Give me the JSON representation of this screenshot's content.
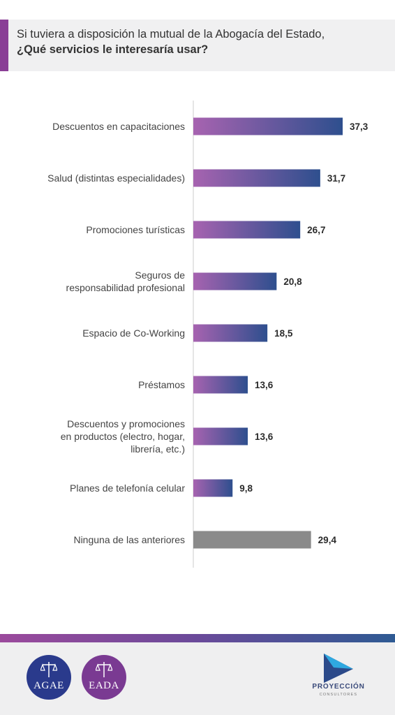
{
  "header": {
    "line1": "Si tuviera a disposición la mutual de la Abogacía del Estado,",
    "line2": "¿Qué servicios le interesaría usar?"
  },
  "chart_data": {
    "type": "bar",
    "orientation": "horizontal",
    "categories": [
      [
        "Descuentos en capacitaciones"
      ],
      [
        "Salud (distintas especialidades)"
      ],
      [
        "Promociones turísticas"
      ],
      [
        "Seguros de",
        "responsabilidad profesional"
      ],
      [
        "Espacio de Co-Working"
      ],
      [
        "Préstamos"
      ],
      [
        "Descuentos y promociones",
        "en productos (electro, hogar,",
        "librería, etc.)"
      ],
      [
        "Planes de telefonía celular"
      ],
      [
        "Ninguna de las anteriores"
      ]
    ],
    "values": [
      37.3,
      31.7,
      26.7,
      20.8,
      18.5,
      13.6,
      13.6,
      9.8,
      29.4
    ],
    "value_labels": [
      "37,3",
      "31,7",
      "26,7",
      "20,8",
      "18,5",
      "13,6",
      "13,6",
      "9,8",
      "29,4"
    ],
    "xlim": [
      0,
      37.3
    ],
    "grid": false,
    "colors": {
      "gradient_start": "#a763b0",
      "gradient_end": "#2e4f8e",
      "neutral": "#8a8a8a"
    }
  },
  "footer": {
    "logo_left": "AGAE",
    "logo_right": "EADA",
    "brand_name": "PROYECCIÓN",
    "brand_sub": "CONSULTORES"
  }
}
